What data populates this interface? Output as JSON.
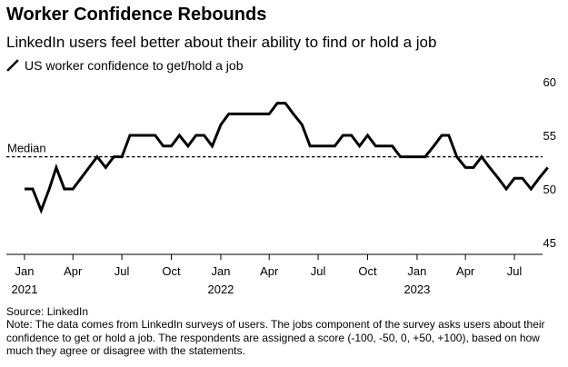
{
  "header": {
    "title": "Worker Confidence Rebounds",
    "subtitle": "LinkedIn users feel better about their ability to find or hold a job"
  },
  "footer": {
    "source": "Source: LinkedIn",
    "note": "Note: The data comes from LinkedIn surveys of users. The jobs component of the survey asks users about their confidence to get or hold a job. The respondents are assigned a score (-100, -50, 0, +50, +100), based on how much they agree or disagree with the statements."
  },
  "chart_data": {
    "type": "line",
    "title": "Worker Confidence Rebounds",
    "subtitle": "LinkedIn users feel better about their ability to find or hold a job",
    "series": [
      {
        "name": "US worker confidence to get/hold a job",
        "color": "#000000",
        "points": [
          [
            "2021-01-01",
            50
          ],
          [
            "2021-01-16",
            50
          ],
          [
            "2021-02-01",
            48
          ],
          [
            "2021-02-16",
            50
          ],
          [
            "2021-03-01",
            52
          ],
          [
            "2021-03-16",
            50
          ],
          [
            "2021-04-01",
            50
          ],
          [
            "2021-04-16",
            51
          ],
          [
            "2021-05-01",
            52
          ],
          [
            "2021-05-16",
            53
          ],
          [
            "2021-06-01",
            52
          ],
          [
            "2021-06-16",
            53
          ],
          [
            "2021-07-01",
            53
          ],
          [
            "2021-07-16",
            55
          ],
          [
            "2021-08-01",
            55
          ],
          [
            "2021-08-16",
            55
          ],
          [
            "2021-09-01",
            55
          ],
          [
            "2021-09-16",
            54
          ],
          [
            "2021-10-01",
            54
          ],
          [
            "2021-10-16",
            55
          ],
          [
            "2021-11-01",
            54
          ],
          [
            "2021-11-16",
            55
          ],
          [
            "2021-12-01",
            55
          ],
          [
            "2021-12-16",
            54
          ],
          [
            "2022-01-01",
            56
          ],
          [
            "2022-01-16",
            57
          ],
          [
            "2022-02-01",
            57
          ],
          [
            "2022-02-16",
            57
          ],
          [
            "2022-03-01",
            57
          ],
          [
            "2022-03-16",
            57
          ],
          [
            "2022-04-01",
            57
          ],
          [
            "2022-04-16",
            58
          ],
          [
            "2022-05-01",
            58
          ],
          [
            "2022-05-16",
            57
          ],
          [
            "2022-06-01",
            56
          ],
          [
            "2022-06-16",
            54
          ],
          [
            "2022-07-01",
            54
          ],
          [
            "2022-07-16",
            54
          ],
          [
            "2022-08-01",
            54
          ],
          [
            "2022-08-16",
            55
          ],
          [
            "2022-09-01",
            55
          ],
          [
            "2022-09-16",
            54
          ],
          [
            "2022-10-01",
            55
          ],
          [
            "2022-10-16",
            54
          ],
          [
            "2022-11-01",
            54
          ],
          [
            "2022-11-16",
            54
          ],
          [
            "2022-12-01",
            53
          ],
          [
            "2022-12-16",
            53
          ],
          [
            "2023-01-01",
            53
          ],
          [
            "2023-01-16",
            53
          ],
          [
            "2023-02-01",
            54
          ],
          [
            "2023-02-16",
            55
          ],
          [
            "2023-03-01",
            55
          ],
          [
            "2023-03-16",
            53
          ],
          [
            "2023-04-01",
            52
          ],
          [
            "2023-04-16",
            52
          ],
          [
            "2023-05-01",
            53
          ],
          [
            "2023-05-16",
            52
          ],
          [
            "2023-06-01",
            51
          ],
          [
            "2023-06-16",
            50
          ],
          [
            "2023-07-01",
            51
          ],
          [
            "2023-07-16",
            51
          ],
          [
            "2023-08-01",
            50
          ],
          [
            "2023-08-16",
            51
          ],
          [
            "2023-09-01",
            52
          ]
        ]
      }
    ],
    "reference_line": {
      "label": "Median",
      "value": 53,
      "style": "dashed"
    },
    "x_axis": {
      "range": [
        "2021-01-01",
        "2023-09-01"
      ],
      "ticks": [
        {
          "date": "2021-01-01",
          "label": "Jan",
          "year": "2021"
        },
        {
          "date": "2021-04-01",
          "label": "Apr"
        },
        {
          "date": "2021-07-01",
          "label": "Jul"
        },
        {
          "date": "2021-10-01",
          "label": "Oct"
        },
        {
          "date": "2022-01-01",
          "label": "Jan",
          "year": "2022"
        },
        {
          "date": "2022-04-01",
          "label": "Apr"
        },
        {
          "date": "2022-07-01",
          "label": "Jul"
        },
        {
          "date": "2022-10-01",
          "label": "Oct"
        },
        {
          "date": "2023-01-01",
          "label": "Jan",
          "year": "2023"
        },
        {
          "date": "2023-04-01",
          "label": "Apr"
        },
        {
          "date": "2023-07-01",
          "label": "Jul"
        }
      ]
    },
    "y_axis": {
      "position": "right",
      "range": [
        45,
        60
      ],
      "ticks": [
        45,
        50,
        55,
        60
      ]
    },
    "grid": false,
    "legend_position": "top-left"
  }
}
